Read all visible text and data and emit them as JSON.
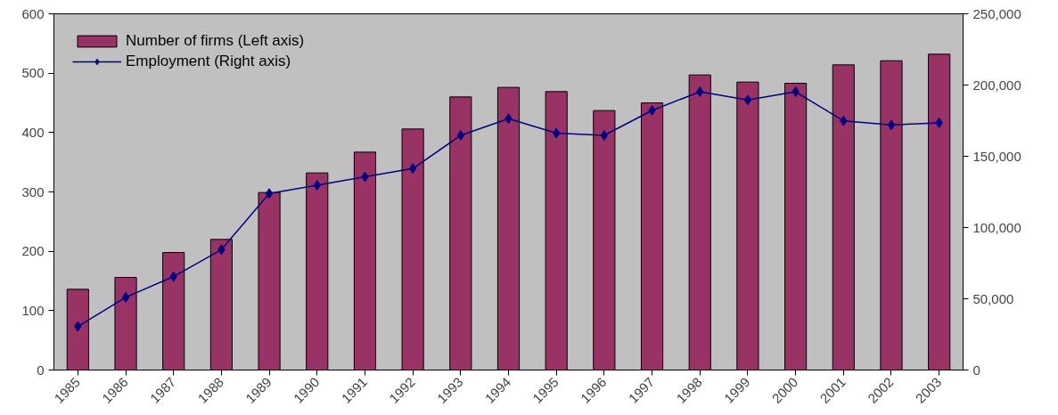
{
  "chart_data": {
    "type": "bar",
    "categories": [
      "1985",
      "1986",
      "1987",
      "1988",
      "1989",
      "1990",
      "1991",
      "1992",
      "1993",
      "1994",
      "1995",
      "1996",
      "1997",
      "1998",
      "1999",
      "2000",
      "2001",
      "2002",
      "2003"
    ],
    "series": [
      {
        "name": "Number of firms (Left axis)",
        "color": "#993366",
        "values": [
          136,
          156,
          198,
          220,
          299,
          332,
          367,
          406,
          460,
          476,
          469,
          437,
          450,
          497,
          485,
          483,
          514,
          521,
          532
        ]
      },
      {
        "name": "Employment (Right axis)",
        "type": "line",
        "axis": "y2",
        "color": "#000080",
        "values": [
          30600,
          51000,
          65600,
          84500,
          123900,
          129700,
          135600,
          141400,
          164700,
          176400,
          166200,
          164700,
          182200,
          195300,
          189500,
          195300,
          174900,
          172000,
          173500
        ]
      }
    ],
    "ylim": [
      0,
      600
    ],
    "yticks": [
      0,
      100,
      200,
      300,
      400,
      500,
      600
    ],
    "y2lim": [
      0,
      250000
    ],
    "y2ticks": [
      {
        "value": 0,
        "label": "0"
      },
      {
        "value": 50000,
        "label": "50,000"
      },
      {
        "value": 100000,
        "label": "100,000"
      },
      {
        "value": 150000,
        "label": "150,000"
      },
      {
        "value": 200000,
        "label": "200,000"
      },
      {
        "value": 250000,
        "label": "250,000"
      }
    ],
    "grid": false,
    "legend": "top left",
    "marker": "diamond",
    "line_style": "solid"
  }
}
